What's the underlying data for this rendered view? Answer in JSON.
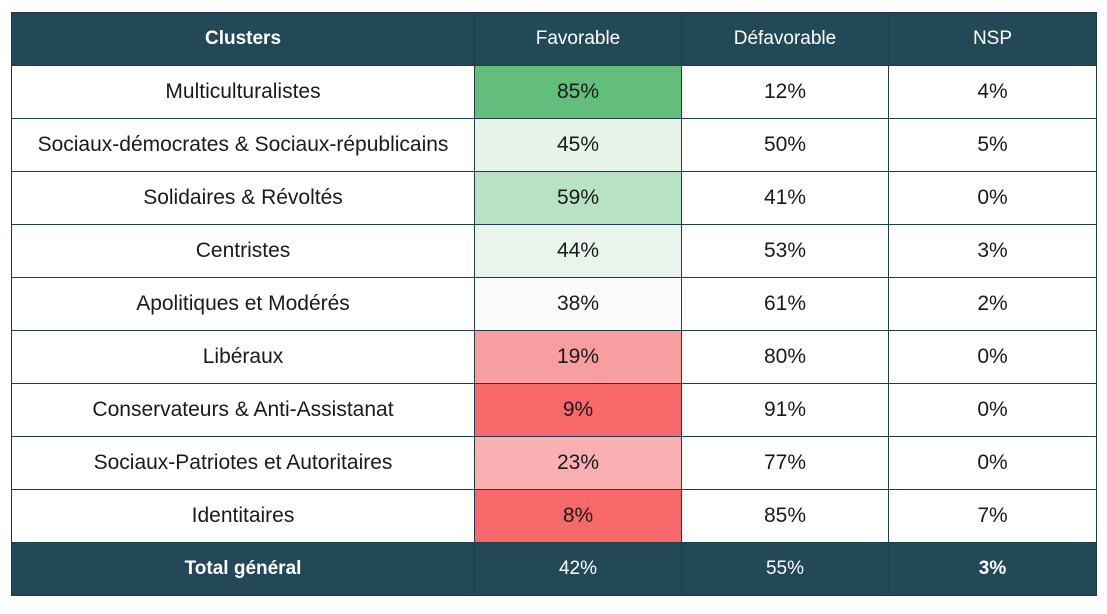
{
  "chart_data": {
    "type": "table",
    "columns": [
      "Clusters",
      "Favorable",
      "Défavorable",
      "NSP"
    ],
    "rows": [
      {
        "cluster": "Multiculturalistes",
        "favorable": "85%",
        "defavorable": "12%",
        "nsp": "4%",
        "favorable_color": "#63be7b"
      },
      {
        "cluster": "Sociaux-démocrates & Sociaux-républicains",
        "favorable": "45%",
        "defavorable": "50%",
        "nsp": "5%",
        "favorable_color": "#e6f4ea"
      },
      {
        "cluster": "Solidaires & Révoltés",
        "favorable": "59%",
        "defavorable": "41%",
        "nsp": "0%",
        "favorable_color": "#b8e2c4"
      },
      {
        "cluster": "Centristes",
        "favorable": "44%",
        "defavorable": "53%",
        "nsp": "3%",
        "favorable_color": "#e9f5ec"
      },
      {
        "cluster": "Apolitiques et Modérés",
        "favorable": "38%",
        "defavorable": "61%",
        "nsp": "2%",
        "favorable_color": "#fbfbfe"
      },
      {
        "cluster": "Libéraux",
        "favorable": "19%",
        "defavorable": "80%",
        "nsp": "0%",
        "favorable_color": "#f99ea0"
      },
      {
        "cluster": "Conservateurs & Anti-Assistanat",
        "favorable": "9%",
        "defavorable": "91%",
        "nsp": "0%",
        "favorable_color": "#f8696b"
      },
      {
        "cluster": "Sociaux-Patriotes et Autoritaires",
        "favorable": "23%",
        "defavorable": "77%",
        "nsp": "0%",
        "favorable_color": "#fab0b2"
      },
      {
        "cluster": "Identitaires",
        "favorable": "8%",
        "defavorable": "85%",
        "nsp": "7%",
        "favorable_color": "#f8696b"
      }
    ],
    "total": {
      "label": "Total général",
      "favorable": "42%",
      "defavorable": "55%",
      "nsp": "3%"
    }
  },
  "colors": {
    "header_bg": "#234959",
    "header_text": "#ffffff",
    "border": "#1f3c4b"
  }
}
